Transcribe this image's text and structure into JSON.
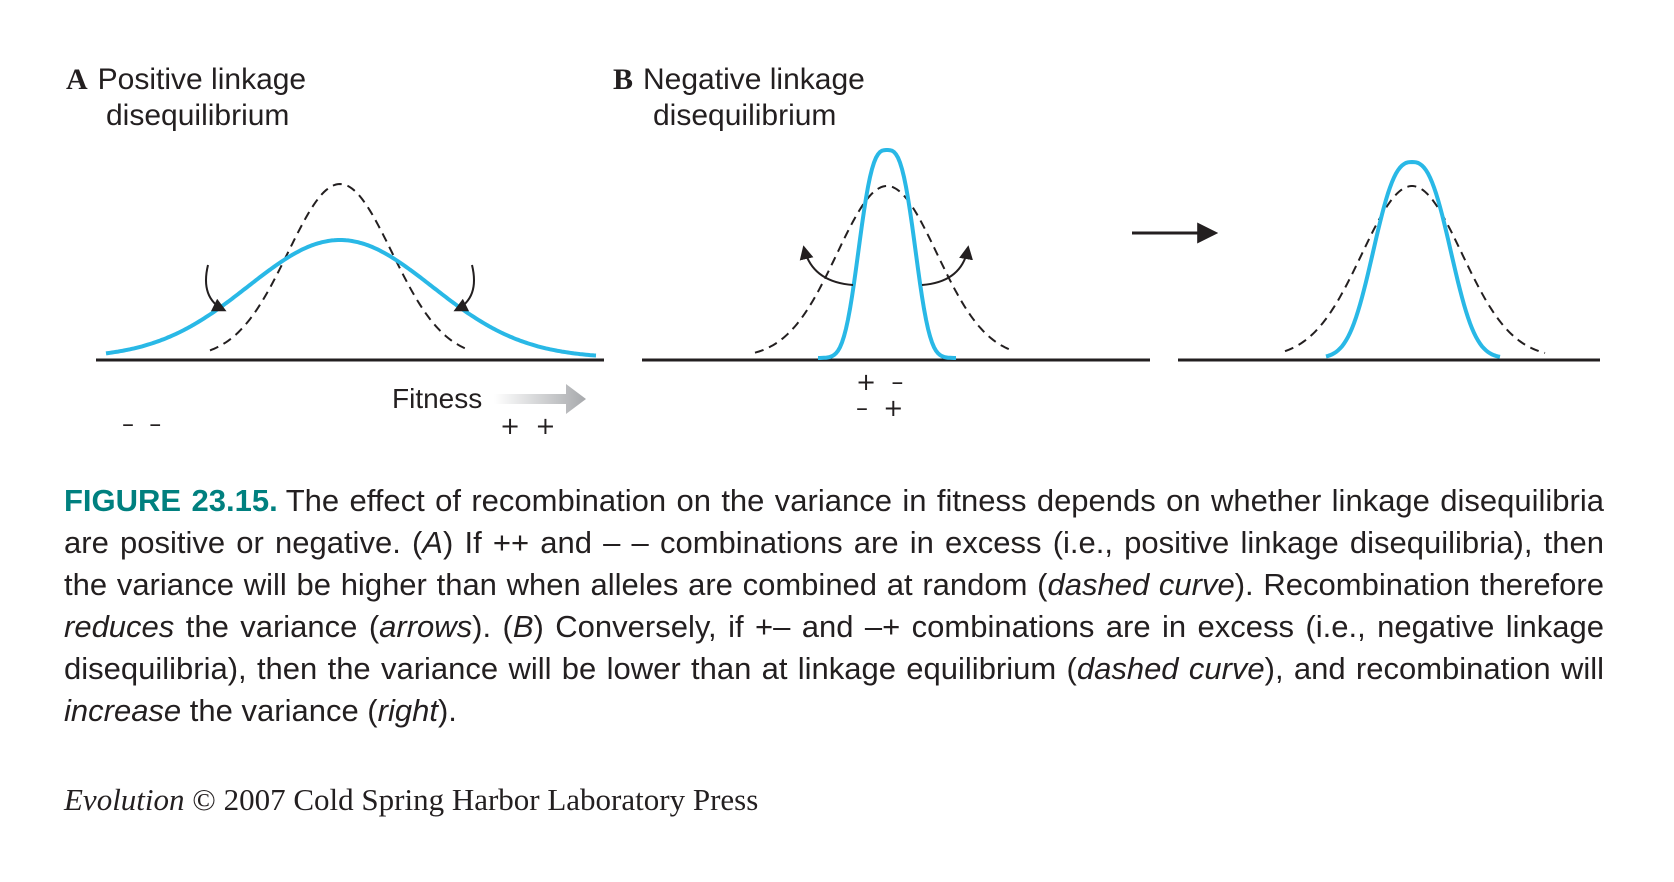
{
  "panel_a": {
    "letter": "A",
    "title_line1": "Positive linkage",
    "title_line2": "disequilibrium",
    "axis_label": "Fitness",
    "left_signs": "–  –",
    "right_signs": "+  +"
  },
  "panel_b": {
    "letter": "B",
    "title_line1": "Negative linkage",
    "title_line2": "disequilibrium",
    "signs_line1": "+  –",
    "signs_line2": "–  +"
  },
  "colors": {
    "blue_curve": "#29b8e6",
    "dashed_curve": "#231f20",
    "fitness_arrow": "#a7a9ac",
    "figure_label": "#00807f"
  },
  "caption": {
    "figure_label": "FIGURE 23.15.",
    "s1": "The effect of recombination on the variance in fitness depends on whether linkage disequilibria are positive or negative. (",
    "s1_i": "A",
    "s2": ") If ++ and – – combinations are in excess (i.e., positive linkage disequilibria), then the variance will be higher than when alleles are combined at random (",
    "s2_i": "dashed curve",
    "s3": "). Recombination therefore ",
    "s3_i": "reduces",
    "s4": " the variance (",
    "s4_i": "arrows",
    "s5": "). (",
    "s5_i": "B",
    "s6": ") Conversely, if +– and –+ combinations are in excess (i.e., negative linkage disequilibria), then the variance will be lower than at linkage equilibrium (",
    "s6_i": "dashed curve",
    "s7": "), and recombination will ",
    "s7_i": "increase",
    "s8": " the variance (",
    "s8_i": "right",
    "s9": ")."
  },
  "copyright": {
    "book": "Evolution",
    "text": " © 2007 Cold Spring Harbor Laboratory Press"
  }
}
